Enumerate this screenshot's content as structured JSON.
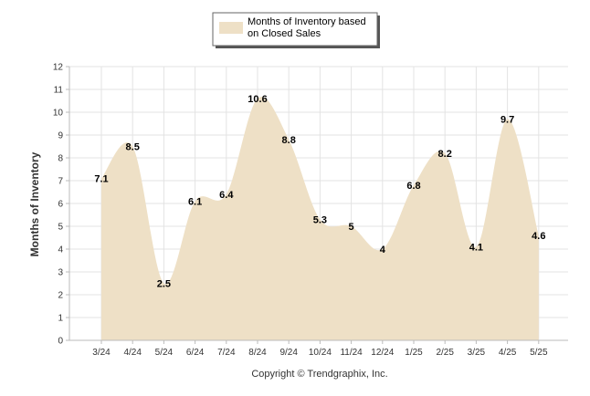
{
  "chart_data": {
    "type": "area",
    "categories": [
      "3/24",
      "4/24",
      "5/24",
      "6/24",
      "7/24",
      "8/24",
      "9/24",
      "10/24",
      "11/24",
      "12/24",
      "1/25",
      "2/25",
      "3/25",
      "4/25",
      "5/25"
    ],
    "series": [
      {
        "name_lines": [
          "Months of Inventory based",
          "on Closed Sales"
        ],
        "values": [
          7.1,
          8.5,
          2.5,
          6.1,
          6.4,
          10.6,
          8.8,
          5.3,
          5,
          4,
          6.8,
          8.2,
          4.1,
          9.7,
          4.6
        ],
        "value_labels": [
          "7.1",
          "8.5",
          "2.5",
          "6.1",
          "6.4",
          "10.6",
          "8.8",
          "5.3",
          "5",
          "4",
          "6.8",
          "8.2",
          "4.1",
          "9.7",
          "4.6"
        ]
      }
    ],
    "ylabel": "Months of Inventory",
    "ylim": [
      0,
      12
    ],
    "yticks": [
      "0",
      "1",
      "2",
      "3",
      "4",
      "5",
      "6",
      "7",
      "8",
      "9",
      "10",
      "11",
      "12"
    ],
    "grid": true,
    "legend_position": "top-center",
    "copyright": "Copyright © Trendgraphix, Inc.",
    "colors": {
      "area": "#eee0c6",
      "grid": "#e3e3e3",
      "axis": "#bbbbbb"
    }
  }
}
